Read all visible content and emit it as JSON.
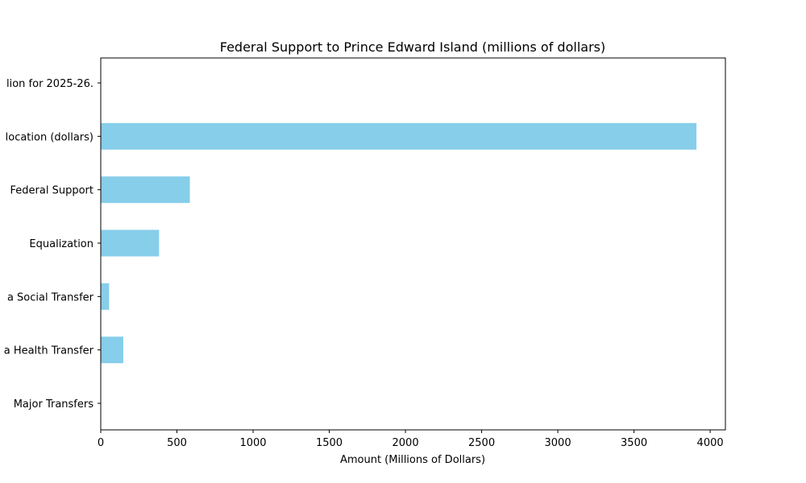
{
  "chart_data": {
    "type": "bar",
    "orientation": "horizontal",
    "title": "Federal Support to Prince Edward Island (millions of dollars)",
    "xlabel": "Amount (Millions of Dollars)",
    "ylabel": "",
    "xlim": [
      0,
      4100
    ],
    "xticks": [
      0,
      500,
      1000,
      1500,
      2000,
      2500,
      3000,
      3500,
      4000
    ],
    "categories": [
      "Major Transfers",
      "a Health Transfer",
      "a Social Transfer",
      "Equalization",
      "Federal Support",
      "location (dollars)",
      "lion for 2025-26."
    ],
    "values": [
      0,
      148,
      55,
      383,
      585,
      3910,
      0
    ],
    "bar_color": "#87ceeb",
    "grid": false,
    "legend": null
  }
}
